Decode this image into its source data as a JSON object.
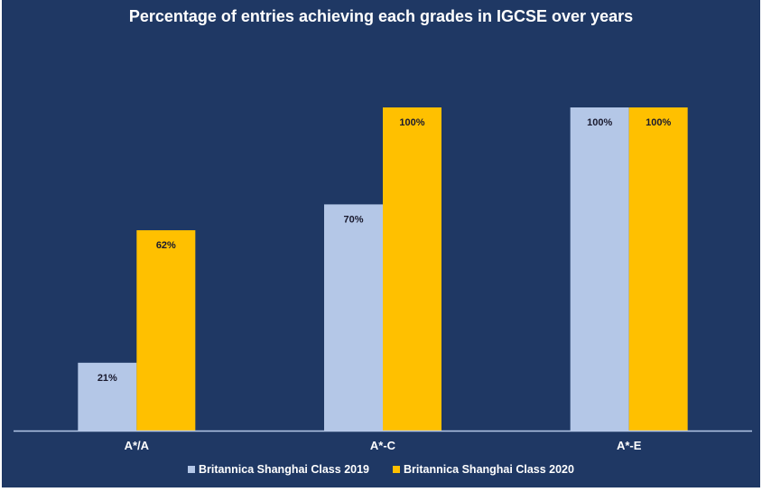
{
  "chart_data": {
    "type": "bar",
    "title": "Percentage of entries achieving each grades in IGCSE over years",
    "categories": [
      "A*/A",
      "A*-C",
      "A*-E"
    ],
    "series": [
      {
        "name": "Britannica Shanghai Class 2019",
        "color": "#b4c7e7",
        "values": [
          21,
          70,
          100
        ],
        "labels": [
          "21%",
          "70%",
          "100%"
        ]
      },
      {
        "name": "Britannica Shanghai Class 2020",
        "color": "#ffc000",
        "values": [
          62,
          100,
          100
        ],
        "labels": [
          "62%",
          "100%",
          "100%"
        ]
      }
    ],
    "xlabel": "",
    "ylabel": "",
    "ylim": [
      0,
      100
    ],
    "grid": false,
    "legend_position": "bottom"
  }
}
